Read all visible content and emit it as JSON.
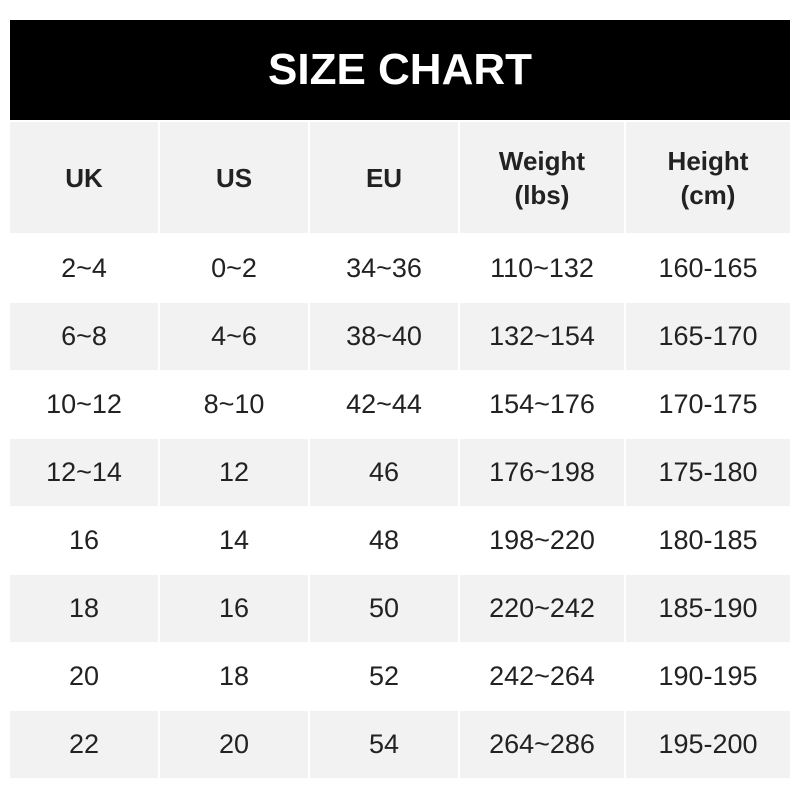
{
  "title": "SIZE CHART",
  "headers": [
    "UK",
    "US",
    "EU",
    "Weight\n(lbs)",
    "Height\n(cm)"
  ],
  "rows": [
    [
      "2~4",
      "0~2",
      "34~36",
      "110~132",
      "160-165"
    ],
    [
      "6~8",
      "4~6",
      "38~40",
      "132~154",
      "165-170"
    ],
    [
      "10~12",
      "8~10",
      "42~44",
      "154~176",
      "170-175"
    ],
    [
      "12~14",
      "12",
      "46",
      "176~198",
      "175-180"
    ],
    [
      "16",
      "14",
      "48",
      "198~220",
      "180-185"
    ],
    [
      "18",
      "16",
      "50",
      "220~242",
      "185-190"
    ],
    [
      "20",
      "18",
      "52",
      "242~264",
      "190-195"
    ],
    [
      "22",
      "20",
      "54",
      "264~286",
      "195-200"
    ]
  ],
  "colors": {
    "title_bg": "#000000",
    "stripe": "#f2f2f2",
    "text": "#222222"
  }
}
